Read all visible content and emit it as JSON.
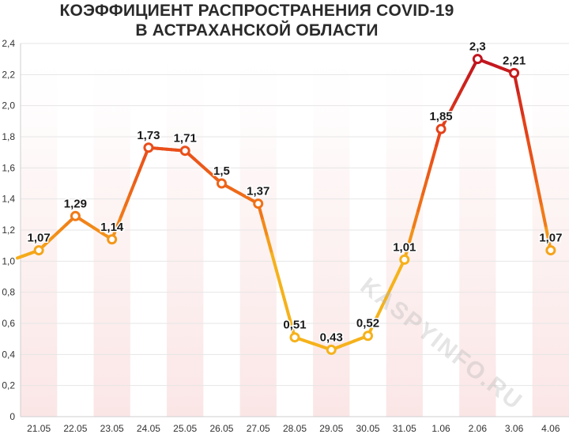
{
  "chart_data": {
    "type": "line",
    "title_line1": "КОЭФФИЦИЕНТ РАСПРОСТРАНЕНИЯ COVID-19",
    "title_line2": "В АСТРАХАНСКОЙ ОБЛАСТИ",
    "categories": [
      "21.05",
      "22.05",
      "23.05",
      "24.05",
      "25.05",
      "26.05",
      "27.05",
      "28.05",
      "29.05",
      "30.05",
      "31.05",
      "1.06",
      "2.06",
      "3.06",
      "4.06"
    ],
    "values": [
      1.07,
      1.29,
      1.14,
      1.73,
      1.71,
      1.5,
      1.37,
      0.51,
      0.43,
      0.52,
      1.01,
      1.85,
      2.3,
      2.21,
      1.07
    ],
    "value_labels": [
      "1,07",
      "1,29",
      "1,14",
      "1,73",
      "1,71",
      "1,5",
      "1,37",
      "0,51",
      "0,43",
      "0,52",
      "1,01",
      "1,85",
      "2,3",
      "2,21",
      "1,07"
    ],
    "ylim": [
      0,
      2.4
    ],
    "yticks": [
      "0",
      "0,2",
      "0,4",
      "0,6",
      "0,8",
      "1,0",
      "1,2",
      "1,4",
      "1,6",
      "1,8",
      "2,0",
      "2,2",
      "2,4"
    ],
    "start_value": 1.02,
    "grid": true,
    "legend": "none",
    "colors": {
      "low": "#f5b21b",
      "mid": "#f07818",
      "high": "#c0141e",
      "stripe": "#fbe6e6"
    }
  },
  "watermark": "KASPYINFO.RU"
}
